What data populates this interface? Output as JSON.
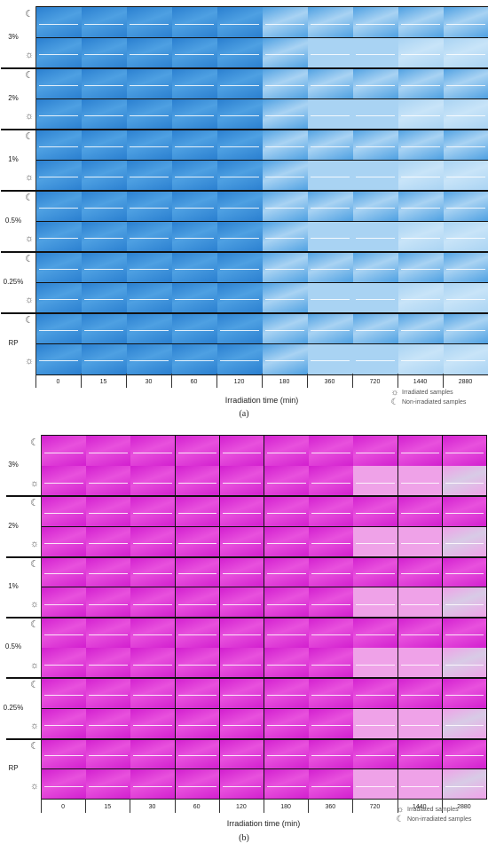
{
  "figure": {
    "panels": [
      {
        "id": "a",
        "label": "(a)",
        "colors": {
          "deep": "#2a7fd0",
          "mid": "#4ea0e2",
          "light": "#a9d3f3",
          "pale": "#c8e4f8"
        },
        "fade_from_column": 6
      },
      {
        "id": "b",
        "label": "(b)",
        "colors": {
          "deep": "#d21fcf",
          "mid": "#e851dd",
          "light": "#efa2e8",
          "pale": "#d8cbe6"
        },
        "fade_from_column": 7
      }
    ],
    "rows": [
      {
        "concentration": "3%"
      },
      {
        "concentration": "2%"
      },
      {
        "concentration": "1%"
      },
      {
        "concentration": "0.5%"
      },
      {
        "concentration": "0.25%"
      },
      {
        "concentration": "RP"
      }
    ],
    "times": [
      "0",
      "15",
      "30",
      "60",
      "120",
      "180",
      "360",
      "720",
      "1440",
      "2880"
    ],
    "x_axis_label": "Irradiation time (min)",
    "legend": {
      "irradiated": "Irradiated samples",
      "non_irradiated": "Non-irradiated samples",
      "irradiated_icon": "sun-icon",
      "non_irradiated_icon": "moon-icon"
    }
  }
}
